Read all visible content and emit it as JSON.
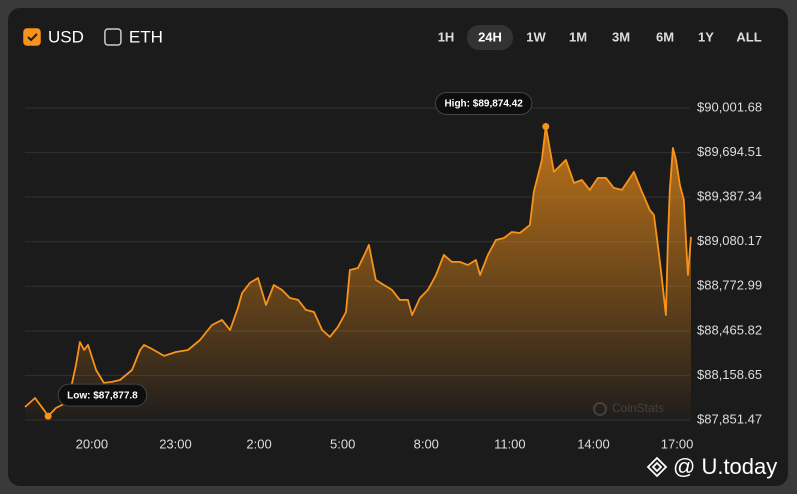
{
  "ui": {
    "checkboxes": [
      {
        "label": "USD",
        "checked": true
      },
      {
        "label": "ETH",
        "checked": false
      }
    ],
    "ranges": [
      "1H",
      "24H",
      "1W",
      "1M",
      "3M",
      "6M",
      "1Y",
      "ALL"
    ],
    "active_range": "24H",
    "watermark": "CoinStats",
    "credit": "@ U.today"
  },
  "chart_data": {
    "type": "line",
    "color": "#f7931a",
    "area": true,
    "grid": true,
    "x": [
      17.6,
      17.96,
      18.28,
      18.43,
      18.71,
      19.0,
      19.21,
      19.43,
      19.57,
      19.72,
      19.86,
      20.15,
      20.43,
      20.72,
      21.01,
      21.44,
      21.73,
      21.87,
      22.16,
      22.59,
      23.02,
      23.45,
      23.88,
      24.31,
      24.67,
      24.96,
      25.24,
      25.39,
      25.67,
      25.96,
      26.25,
      26.53,
      26.82,
      27.11,
      27.4,
      27.68,
      27.97,
      28.26,
      28.54,
      28.83,
      29.12,
      29.26,
      29.55,
      29.83,
      29.94,
      30.19,
      30.48,
      30.77,
      31.05,
      31.34,
      31.49,
      31.77,
      32.06,
      32.35,
      32.63,
      32.92,
      33.21,
      33.49,
      33.78,
      33.93,
      34.21,
      34.5,
      34.79,
      35.07,
      35.36,
      35.72,
      35.86,
      36.15,
      36.29,
      36.44,
      36.58,
      37.01,
      37.3,
      37.58,
      37.87,
      38.16,
      38.45,
      38.73,
      39.02,
      39.31,
      39.45,
      39.74,
      40.02,
      40.17,
      40.31,
      40.42,
      40.6,
      40.67,
      40.74,
      40.85,
      40.96,
      41.1,
      41.24,
      41.39,
      41.5
    ],
    "values": [
      87941,
      88003,
      87921,
      87877.8,
      87934,
      87962,
      88038,
      88231,
      88389,
      88334,
      88369,
      88196,
      88107,
      88114,
      88127,
      88196,
      88334,
      88369,
      88341,
      88293,
      88320,
      88334,
      88403,
      88506,
      88541,
      88472,
      88624,
      88727,
      88796,
      88830,
      88644,
      88782,
      88748,
      88692,
      88679,
      88610,
      88596,
      88472,
      88424,
      88493,
      88596,
      88885,
      88899,
      89010,
      89058,
      88817,
      88782,
      88748,
      88679,
      88679,
      88575,
      88692,
      88748,
      88851,
      88989,
      88941,
      88941,
      88920,
      88954,
      88851,
      88989,
      89092,
      89106,
      89147,
      89140,
      89196,
      89423,
      89644,
      89874.42,
      89712,
      89561,
      89644,
      89485,
      89506,
      89437,
      89520,
      89520,
      89451,
      89437,
      89520,
      89561,
      89423,
      89299,
      89265,
      89058,
      88885,
      88575,
      89092,
      89437,
      89726,
      89644,
      89471,
      89368,
      88851,
      89113
    ],
    "xlim": [
      17.6,
      41.5
    ],
    "xticks": [
      {
        "value": 20,
        "label": "20:00"
      },
      {
        "value": 23,
        "label": "23:00"
      },
      {
        "value": 26,
        "label": "2:00"
      },
      {
        "value": 29,
        "label": "5:00"
      },
      {
        "value": 32,
        "label": "8:00"
      },
      {
        "value": 35,
        "label": "11:00"
      },
      {
        "value": 38,
        "label": "14:00"
      },
      {
        "value": 41,
        "label": "17:00"
      }
    ],
    "ylim": [
      87851.47,
      90001.68
    ],
    "yticks": [
      {
        "value": 90001.68,
        "label": "$90,001.68"
      },
      {
        "value": 89694.51,
        "label": "$89,694.51"
      },
      {
        "value": 89387.34,
        "label": "$89,387.34"
      },
      {
        "value": 89080.17,
        "label": "$89,080.17"
      },
      {
        "value": 88772.99,
        "label": "$88,772.99"
      },
      {
        "value": 88465.82,
        "label": "$88,465.82"
      },
      {
        "value": 88158.65,
        "label": "$88,158.65"
      },
      {
        "value": 87851.47,
        "label": "$87,851.47"
      }
    ],
    "annotations": [
      {
        "text": "High: $89,874.42",
        "x": 36.29,
        "y": 89874.42
      },
      {
        "text": "Low: $87,877.8",
        "x": 18.43,
        "y": 87877.8
      }
    ]
  }
}
